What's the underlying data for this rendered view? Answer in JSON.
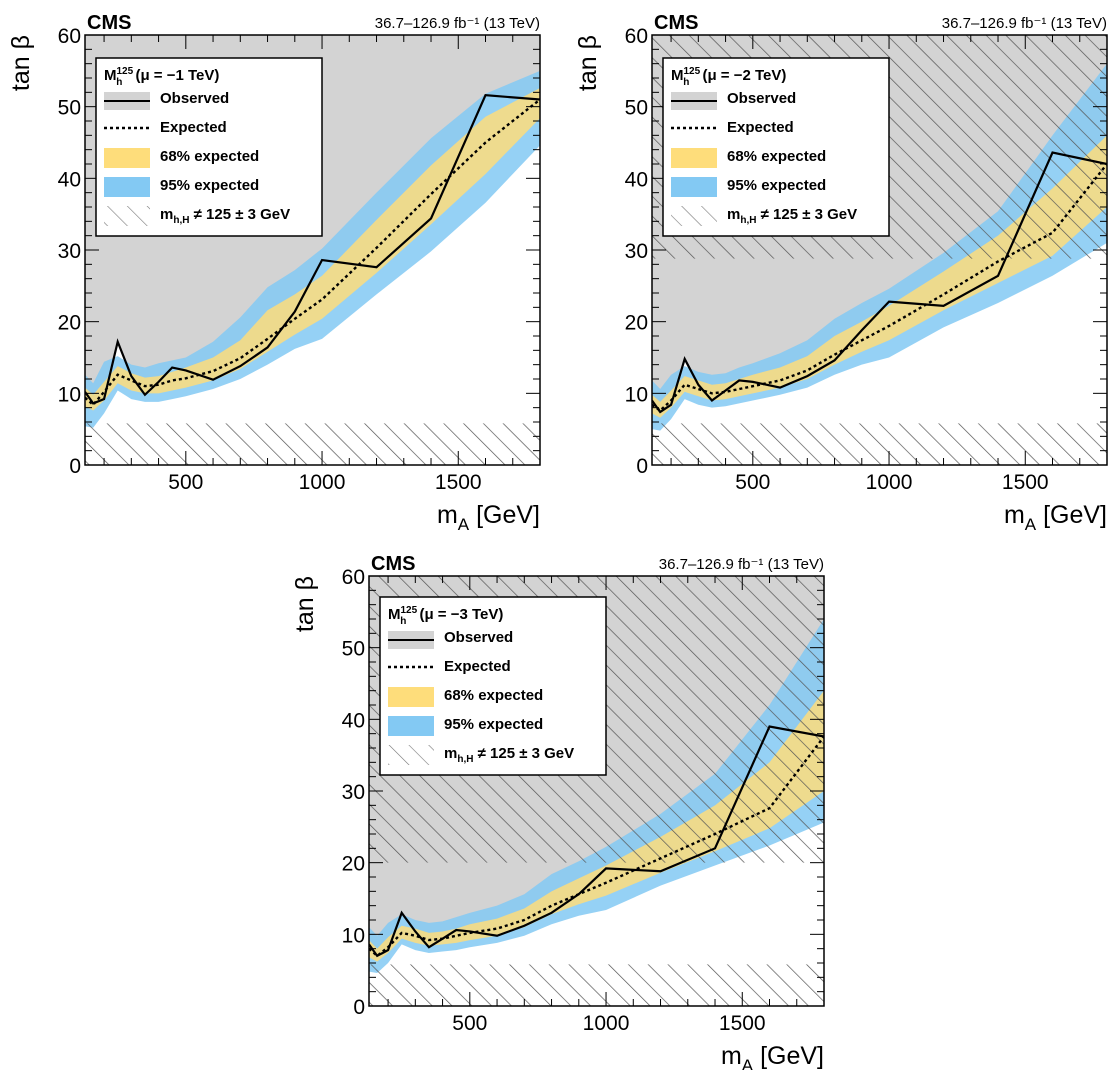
{
  "common": {
    "cms_label": "CMS",
    "lumi_label": "36.7–126.9 fb⁻¹ (13 TeV)",
    "xlabel": "m_A [GeV]",
    "ylabel": "tan β",
    "legend": {
      "observed": "Observed",
      "expected": "Expected",
      "band68": "68% expected",
      "band95": "95% expected",
      "excluded": "m_h,H ≠ 125 ± 3 GeV"
    },
    "colors": {
      "band68": "#fedd7b",
      "band95": "#83c9f3",
      "observed_region": "#d3d3d3",
      "hatch": "#555555"
    }
  },
  "chart_data": [
    {
      "type": "line",
      "legend_title": "M_h^125 (μ = −1 TeV)",
      "xlim": [
        130,
        1800
      ],
      "ylim": [
        0,
        60
      ],
      "xticks": [
        500,
        1000,
        1500
      ],
      "yticks": [
        0,
        10,
        20,
        30,
        40,
        50,
        60
      ],
      "x": [
        130,
        160,
        200,
        250,
        300,
        350,
        400,
        450,
        500,
        600,
        700,
        800,
        900,
        1000,
        1200,
        1400,
        1600,
        1800
      ],
      "observed": [
        10.2,
        8.6,
        9.2,
        17.2,
        12.4,
        9.8,
        11.6,
        13.6,
        13.2,
        11.9,
        13.8,
        16.4,
        21.4,
        28.6,
        27.6,
        34.4,
        51.6,
        51.0
      ],
      "expected": [
        9.4,
        8.4,
        10.2,
        12.6,
        11.8,
        11.0,
        11.2,
        11.8,
        12.1,
        13.1,
        14.9,
        17.6,
        20.4,
        23.1,
        30.3,
        37.8,
        45.0,
        51.0
      ],
      "band68_low": [
        8.2,
        7.6,
        9.0,
        11.4,
        10.4,
        10.0,
        10.0,
        10.4,
        10.8,
        11.8,
        13.4,
        15.8,
        18.2,
        20.4,
        26.8,
        33.6,
        40.6,
        48.4
      ],
      "band68_high": [
        10.8,
        9.8,
        11.6,
        13.8,
        12.8,
        12.2,
        12.4,
        13.0,
        13.6,
        15.0,
        17.4,
        21.6,
        23.8,
        26.4,
        34.2,
        41.8,
        48.6,
        52.6
      ],
      "band95_low": [
        5.4,
        5.2,
        7.2,
        10.4,
        9.2,
        8.8,
        8.8,
        9.2,
        9.6,
        10.6,
        12.0,
        14.0,
        16.2,
        17.6,
        23.8,
        29.8,
        36.6,
        44.6
      ],
      "band95_high": [
        12.6,
        11.4,
        14.4,
        15.2,
        14.0,
        13.6,
        14.2,
        14.6,
        15.0,
        17.2,
        20.6,
        24.8,
        27.2,
        30.2,
        38.0,
        45.6,
        51.8,
        55.0
      ],
      "hatch_low_y": [
        5.8,
        5.8,
        5.8,
        5.8,
        5.8,
        5.8,
        5.8,
        5.8,
        5.8,
        5.8,
        5.8,
        5.8,
        5.8,
        5.8,
        5.8,
        5.8,
        5.8,
        5.8
      ],
      "hatch_high_y": [
        60,
        60,
        60,
        60,
        60,
        60,
        60,
        60,
        60,
        60,
        60,
        60,
        60,
        60,
        60,
        60,
        60,
        60
      ]
    },
    {
      "type": "line",
      "legend_title": "M_h^125 (μ = −2 TeV)",
      "xlim": [
        130,
        1800
      ],
      "ylim": [
        0,
        60
      ],
      "xticks": [
        500,
        1000,
        1500
      ],
      "yticks": [
        0,
        10,
        20,
        30,
        40,
        50,
        60
      ],
      "x": [
        130,
        160,
        200,
        250,
        300,
        350,
        400,
        450,
        500,
        600,
        700,
        800,
        900,
        1000,
        1200,
        1400,
        1600,
        1800
      ],
      "observed": [
        9.0,
        7.4,
        8.4,
        14.8,
        11.2,
        9.0,
        10.4,
        11.8,
        11.6,
        10.8,
        12.4,
        14.6,
        18.8,
        22.8,
        22.2,
        26.4,
        43.6,
        42.0
      ],
      "expected": [
        8.4,
        7.6,
        9.0,
        11.2,
        10.6,
        10.0,
        10.2,
        10.6,
        11.0,
        11.8,
        13.2,
        15.4,
        17.4,
        19.4,
        23.8,
        28.4,
        32.4,
        42.0
      ],
      "band68_low": [
        7.2,
        6.6,
        8.0,
        10.2,
        9.6,
        9.0,
        9.2,
        9.6,
        10.0,
        10.8,
        12.0,
        14.0,
        15.8,
        17.4,
        21.6,
        25.4,
        29.2,
        36.0
      ],
      "band68_high": [
        9.8,
        8.8,
        10.4,
        12.4,
        11.8,
        11.2,
        11.4,
        12.0,
        12.6,
        13.6,
        15.2,
        18.0,
        20.0,
        22.2,
        27.0,
        32.0,
        38.6,
        46.0
      ],
      "band95_low": [
        5.0,
        4.8,
        6.4,
        9.2,
        8.4,
        8.0,
        8.2,
        8.6,
        9.0,
        9.8,
        10.8,
        12.6,
        14.0,
        15.0,
        19.2,
        22.6,
        26.4,
        31.0
      ],
      "band95_high": [
        11.8,
        10.6,
        12.6,
        13.8,
        13.0,
        12.6,
        12.8,
        13.6,
        14.2,
        15.6,
        17.4,
        20.4,
        22.6,
        24.6,
        29.6,
        35.4,
        46.0,
        56.0
      ],
      "hatch_low_y": [
        5.8,
        5.8,
        5.8,
        5.8,
        5.8,
        5.8,
        5.8,
        5.8,
        5.8,
        5.8,
        5.8,
        5.8,
        5.8,
        5.8,
        5.8,
        5.8,
        5.8,
        5.8
      ],
      "hatch_high_y": [
        28.8,
        28.8,
        28.8,
        28.8,
        28.8,
        28.8,
        28.8,
        28.8,
        28.8,
        28.8,
        28.8,
        28.8,
        28.8,
        28.8,
        28.8,
        28.8,
        28.8,
        28.8
      ]
    },
    {
      "type": "line",
      "legend_title": "M_h^125 (μ = −3 TeV)",
      "xlim": [
        130,
        1800
      ],
      "ylim": [
        0,
        60
      ],
      "xticks": [
        500,
        1000,
        1500
      ],
      "yticks": [
        0,
        10,
        20,
        30,
        40,
        50,
        60
      ],
      "x": [
        130,
        160,
        200,
        250,
        300,
        350,
        400,
        450,
        500,
        600,
        700,
        800,
        900,
        1000,
        1200,
        1400,
        1600,
        1800
      ],
      "observed": [
        8.6,
        7.0,
        7.8,
        13.0,
        10.4,
        8.2,
        9.4,
        10.6,
        10.4,
        9.8,
        11.2,
        13.0,
        15.6,
        19.2,
        18.8,
        22.0,
        39.0,
        37.6
      ],
      "expected": [
        8.0,
        7.0,
        8.2,
        10.2,
        9.8,
        9.2,
        9.4,
        9.8,
        10.2,
        10.8,
        12.0,
        14.0,
        15.6,
        17.2,
        20.6,
        24.0,
        27.6,
        37.6
      ],
      "band68_low": [
        6.8,
        6.2,
        7.4,
        9.4,
        8.8,
        8.4,
        8.6,
        8.8,
        9.2,
        9.8,
        11.0,
        12.8,
        14.2,
        15.4,
        18.6,
        21.6,
        24.8,
        30.0
      ],
      "band68_high": [
        9.2,
        8.0,
        9.6,
        11.2,
        10.8,
        10.2,
        10.4,
        10.8,
        11.4,
        12.2,
        13.6,
        16.0,
        17.8,
        19.6,
        23.6,
        28.0,
        34.0,
        44.0
      ],
      "band95_low": [
        4.8,
        4.6,
        6.0,
        8.6,
        7.8,
        7.4,
        7.6,
        7.8,
        8.2,
        8.8,
        9.8,
        11.4,
        12.6,
        13.4,
        16.8,
        19.6,
        22.4,
        25.6
      ],
      "band95_high": [
        11.0,
        9.8,
        11.6,
        12.8,
        12.0,
        11.6,
        11.8,
        12.4,
        13.0,
        14.0,
        15.6,
        18.4,
        20.2,
        22.2,
        26.8,
        32.4,
        42.0,
        54.0
      ],
      "hatch_low_y": [
        5.8,
        5.8,
        5.8,
        5.8,
        5.8,
        5.8,
        5.8,
        5.8,
        5.8,
        5.8,
        5.8,
        5.8,
        5.8,
        5.8,
        5.8,
        5.8,
        5.8,
        5.8
      ],
      "hatch_high_y": [
        20.0,
        20.0,
        20.0,
        20.0,
        20.0,
        20.0,
        20.0,
        20.0,
        20.0,
        20.0,
        20.0,
        20.0,
        20.0,
        20.0,
        20.0,
        20.0,
        20.0,
        20.0
      ]
    }
  ]
}
